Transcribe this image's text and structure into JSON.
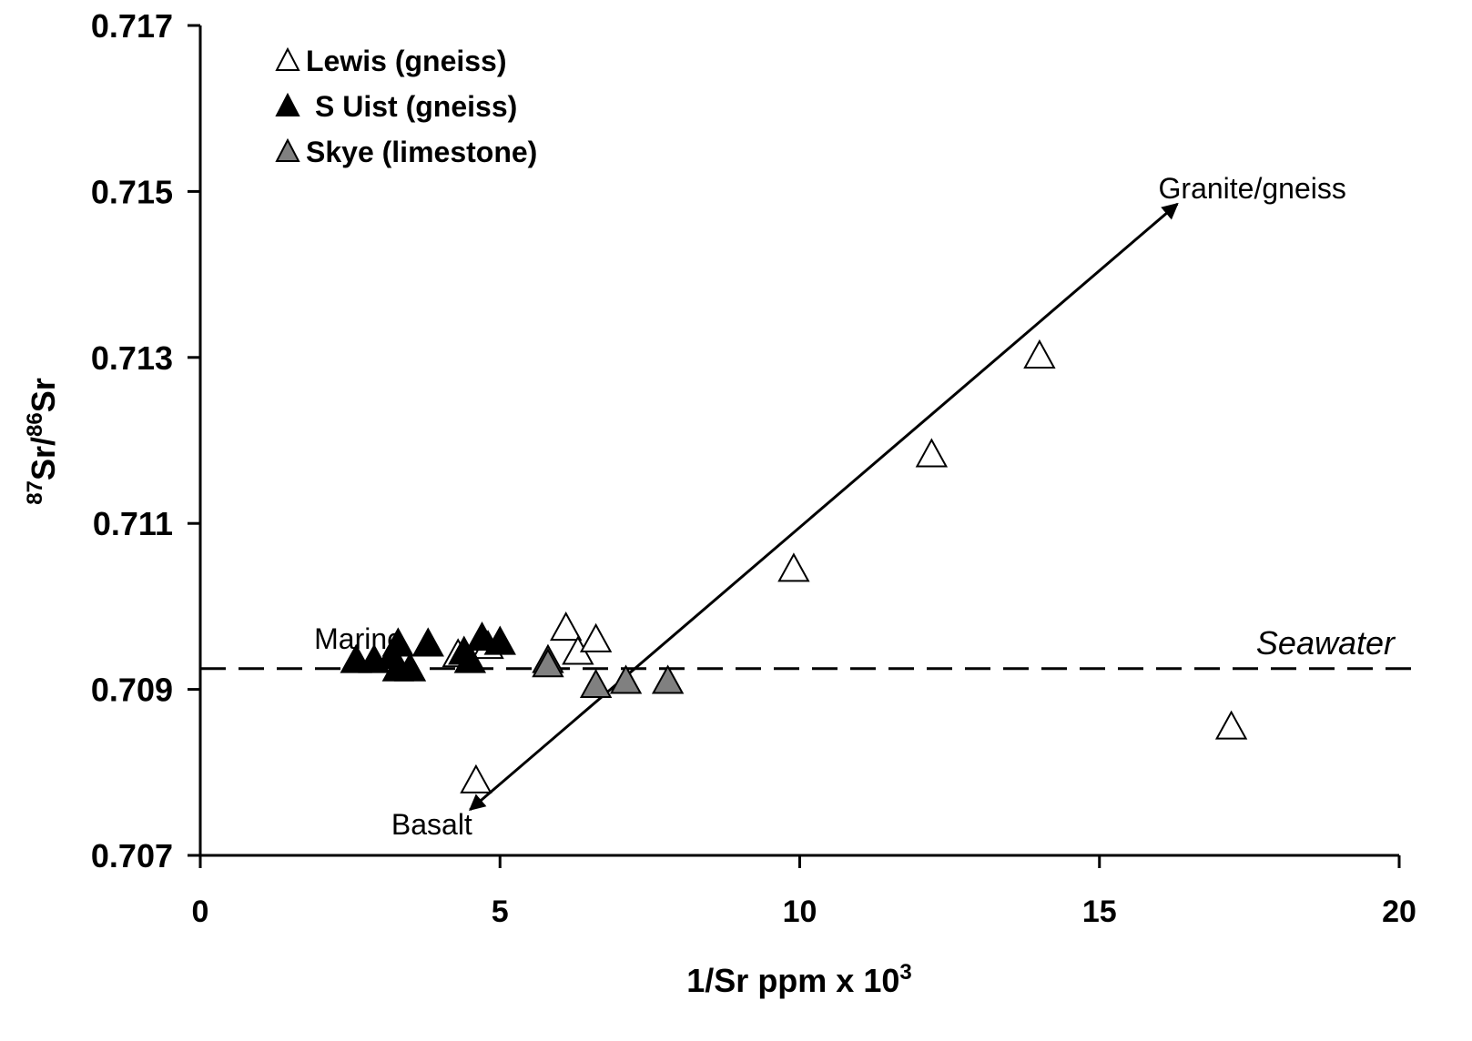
{
  "chart_data": {
    "type": "scatter",
    "xlabel": "1/Sr ppm x 10",
    "xlabel_sup": "3",
    "ylabel_sup1": "87",
    "ylabel_mid": "Sr/",
    "ylabel_sup2": "86",
    "ylabel_end": "Sr",
    "xlim": [
      0,
      20
    ],
    "ylim": [
      0.707,
      0.717
    ],
    "x_ticks": [
      0,
      5,
      10,
      15,
      20
    ],
    "x_tick_labels": [
      "0",
      "5",
      "10",
      "15",
      "20"
    ],
    "y_ticks": [
      0.707,
      0.709,
      0.711,
      0.713,
      0.715,
      0.717
    ],
    "y_tick_labels": [
      "0.707",
      "0.709",
      "0.711",
      "0.713",
      "0.715",
      "0.717"
    ],
    "grid": false,
    "legend_position": "top-left",
    "series": [
      {
        "name": "Lewis (gneiss)",
        "marker": "triangle-open",
        "color": "#ffffff",
        "points": [
          {
            "x": 4.3,
            "y": 0.70942
          },
          {
            "x": 4.8,
            "y": 0.70952
          },
          {
            "x": 6.1,
            "y": 0.70974
          },
          {
            "x": 6.3,
            "y": 0.70945
          },
          {
            "x": 6.6,
            "y": 0.7096
          },
          {
            "x": 4.6,
            "y": 0.7079
          },
          {
            "x": 9.9,
            "y": 0.71045
          },
          {
            "x": 12.2,
            "y": 0.71183
          },
          {
            "x": 14.0,
            "y": 0.71302
          },
          {
            "x": 17.2,
            "y": 0.70855
          }
        ]
      },
      {
        "name": "S Uist (gneiss)",
        "marker": "triangle-filled",
        "color": "#000000",
        "points": [
          {
            "x": 2.6,
            "y": 0.70935
          },
          {
            "x": 2.9,
            "y": 0.70935
          },
          {
            "x": 3.2,
            "y": 0.7094
          },
          {
            "x": 3.3,
            "y": 0.70955
          },
          {
            "x": 3.3,
            "y": 0.70925
          },
          {
            "x": 3.5,
            "y": 0.70925
          },
          {
            "x": 3.8,
            "y": 0.70955
          },
          {
            "x": 4.4,
            "y": 0.70945
          },
          {
            "x": 4.5,
            "y": 0.70935
          },
          {
            "x": 4.7,
            "y": 0.70962
          },
          {
            "x": 5.0,
            "y": 0.70957
          }
        ]
      },
      {
        "name": "Skye (limestone)",
        "marker": "triangle-gray",
        "color": "#808080",
        "points": [
          {
            "x": 5.8,
            "y": 0.70935
          },
          {
            "x": 5.8,
            "y": 0.7093
          },
          {
            "x": 6.6,
            "y": 0.70905
          },
          {
            "x": 7.1,
            "y": 0.7091
          },
          {
            "x": 7.8,
            "y": 0.7091
          }
        ]
      }
    ],
    "reference_lines": [
      {
        "label": "Seawater",
        "y": 0.70925,
        "style": "dashed"
      }
    ],
    "annotations": [
      {
        "text": "Marine",
        "x": 1.9,
        "y": 0.7096
      },
      {
        "text": "Granite/gneiss",
        "x": 16.5,
        "y": 0.71505
      },
      {
        "text": "Basalt",
        "x": 3.4,
        "y": 0.70745
      }
    ],
    "mixing_line": {
      "from": {
        "x": 4.5,
        "y": 0.70755
      },
      "to": {
        "x": 16.3,
        "y": 0.71485
      },
      "arrows": "both"
    }
  }
}
